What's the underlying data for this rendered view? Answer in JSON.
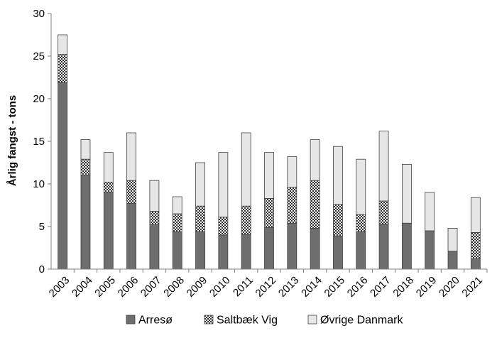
{
  "chart_data": {
    "type": "bar",
    "stacked": true,
    "title": "",
    "xlabel": "",
    "ylabel": "Årlig fangst - tons",
    "ylim": [
      0,
      30
    ],
    "yticks": [
      "0",
      "5",
      "10",
      "15",
      "20",
      "25",
      "30"
    ],
    "grid": false,
    "legend_position": "bottom",
    "categories": [
      "2003",
      "2004",
      "2005",
      "2006",
      "2007",
      "2008",
      "2009",
      "2010",
      "2011",
      "2012",
      "2013",
      "2014",
      "2015",
      "2016",
      "2017",
      "2018",
      "2019",
      "2020",
      "2021"
    ],
    "series": [
      {
        "name": "Arresø",
        "color": "#6e6e6e",
        "pattern": "solid",
        "values": [
          21.9,
          11.0,
          9.0,
          7.7,
          5.2,
          4.4,
          4.4,
          4.0,
          4.1,
          4.9,
          5.4,
          4.8,
          3.9,
          4.4,
          5.3,
          5.4,
          4.5,
          2.1,
          1.2
        ]
      },
      {
        "name": "Saltbæk Vig",
        "color": "#3a3a3a",
        "pattern": "checker",
        "values": [
          3.3,
          1.9,
          1.2,
          2.7,
          1.6,
          2.1,
          3.0,
          2.1,
          3.3,
          3.4,
          4.2,
          5.6,
          3.7,
          2.0,
          2.7,
          0,
          0,
          0,
          3.1
        ]
      },
      {
        "name": "Øvrige Danmark",
        "color": "#e6e6e6",
        "pattern": "solid",
        "values": [
          2.3,
          2.3,
          3.5,
          5.6,
          3.6,
          2.0,
          5.1,
          7.6,
          8.6,
          5.4,
          3.6,
          4.8,
          6.8,
          6.5,
          8.2,
          6.9,
          4.5,
          2.7,
          4.1
        ]
      }
    ]
  }
}
